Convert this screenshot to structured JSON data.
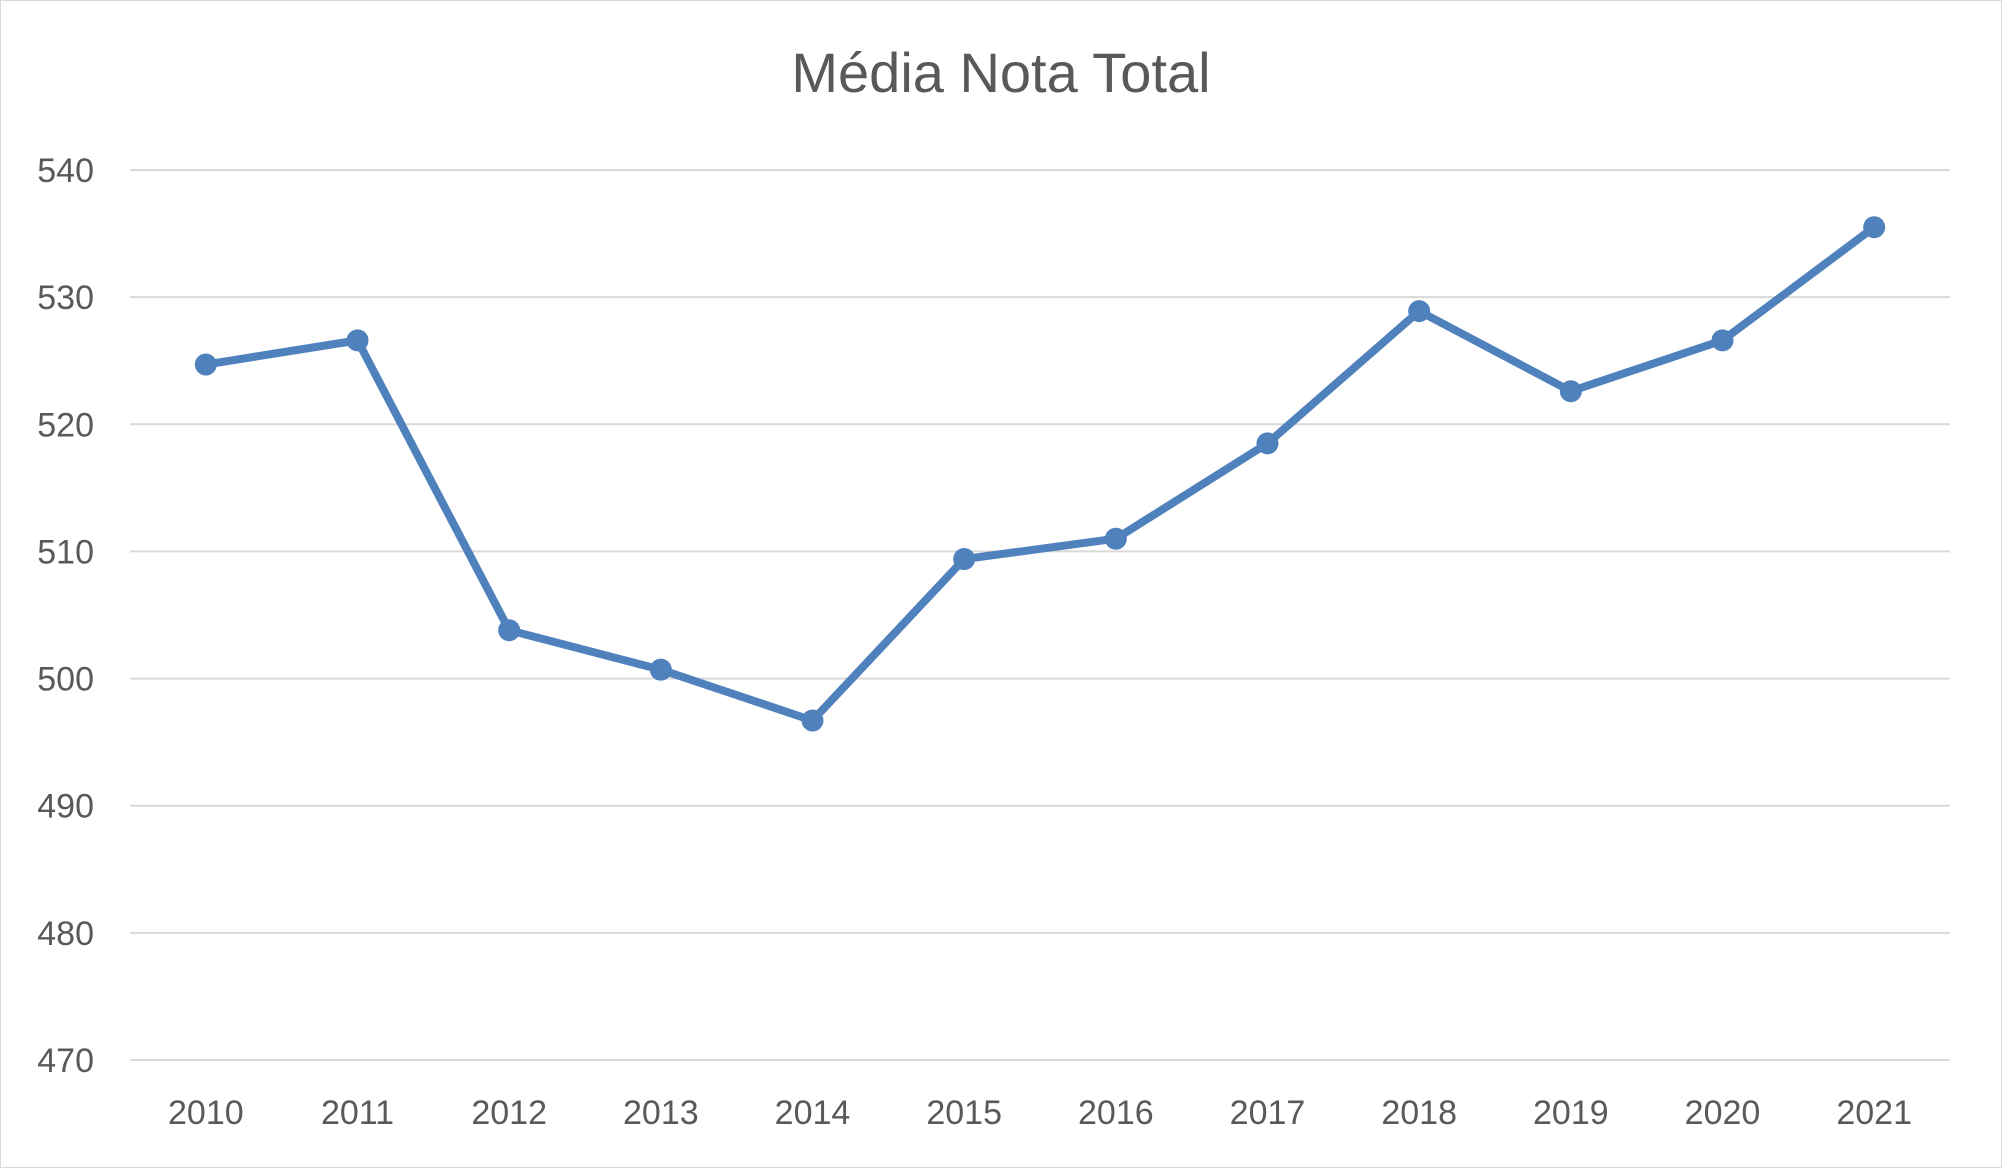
{
  "chart_data": {
    "type": "line",
    "title": "Média Nota Total",
    "xlabel": "",
    "ylabel": "",
    "x": [
      "2010",
      "2011",
      "2012",
      "2013",
      "2014",
      "2015",
      "2016",
      "2017",
      "2018",
      "2019",
      "2020",
      "2021"
    ],
    "series": [
      {
        "values": [
          524.7,
          526.6,
          503.8,
          500.7,
          496.7,
          509.4,
          511.0,
          518.5,
          528.9,
          522.6,
          526.6,
          535.5
        ],
        "color": "#4f81bd"
      }
    ],
    "ylim": [
      470,
      540
    ],
    "yticks": [
      "470",
      "480",
      "490",
      "500",
      "510",
      "520",
      "530",
      "540"
    ],
    "grid": true,
    "gridColor": "#d9d9d9",
    "markers": true,
    "legend": "none"
  }
}
